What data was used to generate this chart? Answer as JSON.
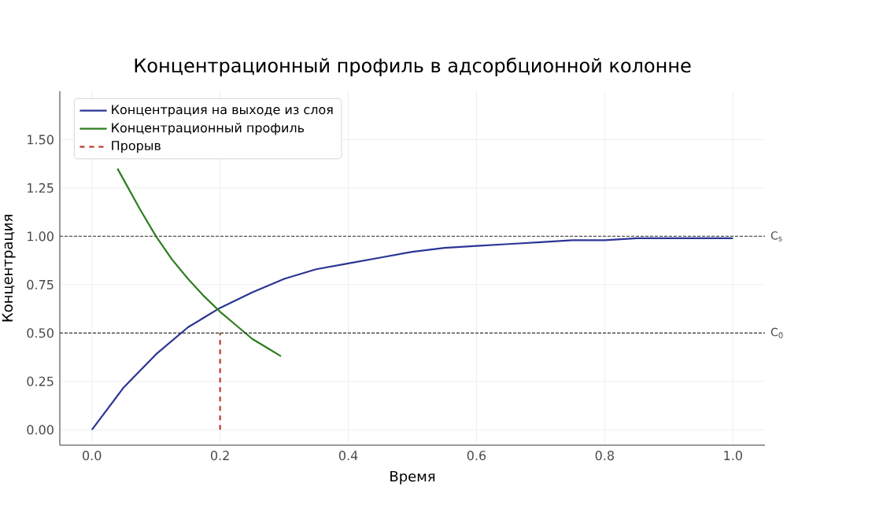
{
  "chart_data": {
    "type": "line",
    "title": "Концентрационный профиль в адсорбционной колонне",
    "xlabel": "Время",
    "ylabel": "Концентрация",
    "xlim": [
      -0.05,
      1.05
    ],
    "ylim": [
      -0.08,
      1.75
    ],
    "xticks": [
      {
        "value": 0,
        "label": "0.0"
      },
      0.2,
      0.4,
      0.6,
      0.8,
      {
        "value": 1,
        "label": "1.0"
      }
    ],
    "yticks": [
      {
        "value": 0,
        "label": "0.00"
      },
      0.25,
      {
        "value": 0.5,
        "label": "0.50"
      },
      0.75,
      {
        "value": 1,
        "label": "1.00"
      },
      1.25,
      {
        "value": 1.5,
        "label": "1.50"
      }
    ],
    "grid": true,
    "legend": "top left",
    "series": [
      {
        "name": "Концентрация на выходе из слоя",
        "color": "#2b3594",
        "x": [
          0,
          0.05,
          0.1,
          0.15,
          0.2,
          0.25,
          0.3,
          0.35,
          0.4,
          0.45,
          0.5,
          0.55,
          0.6,
          0.65,
          0.7,
          0.75,
          0.8,
          0.85,
          0.9,
          0.95,
          1.0
        ],
        "values": [
          0,
          0.22,
          0.39,
          0.53,
          0.63,
          0.71,
          0.78,
          0.83,
          0.86,
          0.89,
          0.92,
          0.94,
          0.95,
          0.96,
          0.97,
          0.98,
          0.98,
          0.99,
          0.99,
          0.99,
          0.99
        ]
      },
      {
        "name": "Концентрационный профиль",
        "color": "#2e7d1f",
        "x": [
          0.04,
          0.05,
          0.075,
          0.1,
          0.125,
          0.15,
          0.175,
          0.2,
          0.225,
          0.25,
          0.275,
          0.295
        ],
        "values": [
          1.35,
          1.29,
          1.14,
          1.0,
          0.88,
          0.78,
          0.69,
          0.61,
          0.54,
          0.47,
          0.42,
          0.38
        ]
      },
      {
        "name": "Прорыв",
        "color": "#c0392b",
        "line_style": "dashed",
        "x": [
          0.2,
          0.2
        ],
        "values": [
          0,
          0.5
        ]
      }
    ],
    "ref_lines": [
      {
        "axis": "y",
        "value": 1.0,
        "label": "C$_{s}$",
        "color": "#555555",
        "line_style": "dashed"
      },
      {
        "axis": "y",
        "value": 0.5,
        "label": "C$_{0}$",
        "color": "#333333",
        "line_style": "dashed"
      }
    ]
  }
}
